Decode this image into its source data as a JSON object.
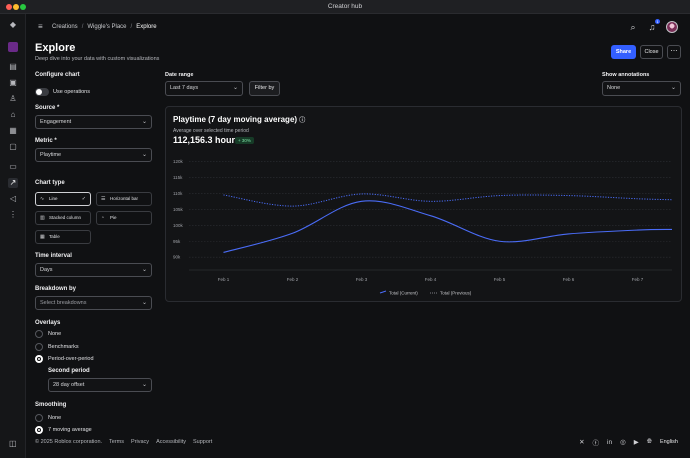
{
  "window": {
    "title": "Creator hub"
  },
  "breadcrumb": [
    "Creations",
    "Wiggle's Place",
    "Explore"
  ],
  "header": {
    "notifications_badge": "1"
  },
  "page": {
    "title": "Explore",
    "subtitle": "Deep dive into your data with custom visualizations",
    "share_label": "Share",
    "close_label": "Close",
    "more_label": "⋯"
  },
  "config": {
    "heading": "Configure chart",
    "use_operations": "Use operations",
    "source_label": "Source *",
    "source_value": "Engagement",
    "metric_label": "Metric *",
    "metric_value": "Playtime",
    "chart_type_label": "Chart type",
    "chart_types": [
      "Line",
      "Horizontal bar",
      "Stacked column",
      "Pie",
      "Table"
    ],
    "time_interval_label": "Time interval",
    "time_interval_value": "Days",
    "breakdown_label": "Breakdown by",
    "breakdown_placeholder": "Select breakdowns",
    "overlays_label": "Overlays",
    "overlay_options": [
      "None",
      "Benchmarks",
      "Period-over-period"
    ],
    "second_period_label": "Second period",
    "second_period_value": "28 day offset",
    "smoothing_label": "Smoothing",
    "smoothing_options": [
      "None",
      "7 moving average"
    ]
  },
  "controls": {
    "date_range_label": "Date range",
    "date_range_value": "Last 7 days",
    "filter_label": "Filter by",
    "annotations_label": "Show annotations",
    "annotations_value": "None"
  },
  "card": {
    "title": "Playtime (7 day moving average)",
    "subtitle": "Average over selected time period",
    "value": "112,156.3 hours",
    "change": "+ 30%"
  },
  "colors": {
    "accent": "#335fff",
    "current": "#4a6cf7",
    "previous": "#4a6cf7"
  },
  "chart_data": {
    "type": "line",
    "x": [
      "Feb 1",
      "Feb 2",
      "Feb 3",
      "Feb 4",
      "Feb 5",
      "Feb 6",
      "Feb 7"
    ],
    "ylim": [
      86,
      122
    ],
    "yticks": [
      {
        "value": 120,
        "label": "120k"
      },
      {
        "value": 115,
        "label": "115k"
      },
      {
        "value": 110,
        "label": "110k"
      },
      {
        "value": 105,
        "label": "105k"
      },
      {
        "value": 100,
        "label": "100k"
      },
      {
        "value": 95,
        "label": "95k"
      },
      {
        "value": 90,
        "label": "90k"
      }
    ],
    "series": [
      {
        "name": "Total (Current)",
        "style": "solid",
        "points": [
          [
            0.5,
            91.5
          ],
          [
            1.5,
            97.5
          ],
          [
            2.5,
            107.5
          ],
          [
            3.5,
            103
          ],
          [
            4.5,
            95
          ],
          [
            5.5,
            97.3
          ],
          [
            6.5,
            98.5
          ],
          [
            7,
            98.7
          ]
        ]
      },
      {
        "name": "Total (Previous)",
        "style": "dotted",
        "points": [
          [
            0.5,
            109.5
          ],
          [
            1.5,
            106
          ],
          [
            2.5,
            109.8
          ],
          [
            3.5,
            107.5
          ],
          [
            4.5,
            109.3
          ],
          [
            5.5,
            109.3
          ],
          [
            6.5,
            108.3
          ],
          [
            7,
            108
          ]
        ]
      }
    ],
    "legend": "bottom-center"
  },
  "footer": {
    "copyright": "© 2025 Roblox corporation.",
    "links": [
      "Terms",
      "Privacy",
      "Accessibility",
      "Support"
    ],
    "language": "English"
  }
}
